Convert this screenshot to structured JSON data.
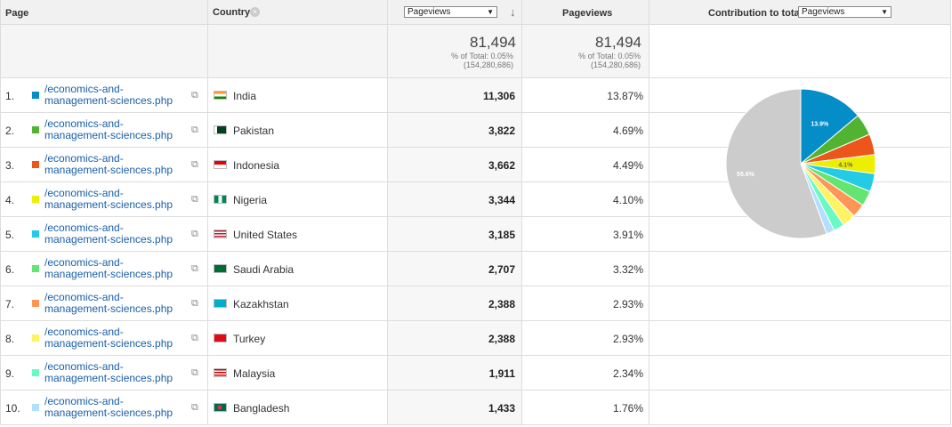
{
  "headers": {
    "page": "Page",
    "country": "Country",
    "primary_metric_select": "Pageviews",
    "pageviews": "Pageviews",
    "contribution_label": "Contribution to total:",
    "contribution_select": "Pageviews"
  },
  "totals": {
    "primary": {
      "value": "81,494",
      "pct_line": "% of Total: 0.05%",
      "total_line": "(154,280,686)"
    },
    "secondary": {
      "value": "81,494",
      "pct_line": "% of Total: 0.05%",
      "total_line": "(154,280,686)"
    }
  },
  "rows": [
    {
      "num": "1.",
      "page": "/economics-and-management-sciences.php",
      "country": "India",
      "pageviews": "11,306",
      "percent": "13.87%",
      "color": "#058dc7"
    },
    {
      "num": "2.",
      "page": "/economics-and-management-sciences.php",
      "country": "Pakistan",
      "pageviews": "3,822",
      "percent": "4.69%",
      "color": "#50b432"
    },
    {
      "num": "3.",
      "page": "/economics-and-management-sciences.php",
      "country": "Indonesia",
      "pageviews": "3,662",
      "percent": "4.49%",
      "color": "#ed561b"
    },
    {
      "num": "4.",
      "page": "/economics-and-management-sciences.php",
      "country": "Nigeria",
      "pageviews": "3,344",
      "percent": "4.10%",
      "color": "#edef00"
    },
    {
      "num": "5.",
      "page": "/economics-and-management-sciences.php",
      "country": "United States",
      "pageviews": "3,185",
      "percent": "3.91%",
      "color": "#24cbe5"
    },
    {
      "num": "6.",
      "page": "/economics-and-management-sciences.php",
      "country": "Saudi Arabia",
      "pageviews": "2,707",
      "percent": "3.32%",
      "color": "#64e572"
    },
    {
      "num": "7.",
      "page": "/economics-and-management-sciences.php",
      "country": "Kazakhstan",
      "pageviews": "2,388",
      "percent": "2.93%",
      "color": "#ff9655"
    },
    {
      "num": "8.",
      "page": "/economics-and-management-sciences.php",
      "country": "Turkey",
      "pageviews": "2,388",
      "percent": "2.93%",
      "color": "#fff263"
    },
    {
      "num": "9.",
      "page": "/economics-and-management-sciences.php",
      "country": "Malaysia",
      "pageviews": "1,911",
      "percent": "2.34%",
      "color": "#6af9c4"
    },
    {
      "num": "10.",
      "page": "/economics-and-management-sciences.php",
      "country": "Bangladesh",
      "pageviews": "1,433",
      "percent": "1.76%",
      "color": "#b2deff"
    }
  ],
  "pie": {
    "other_color": "#cccccc",
    "other_percent": 55.6,
    "labels": [
      {
        "text": "13.9%",
        "slice": 0
      },
      {
        "text": "4.1%",
        "slice": 3
      },
      {
        "text": "55.6%",
        "slice": "other"
      }
    ]
  }
}
